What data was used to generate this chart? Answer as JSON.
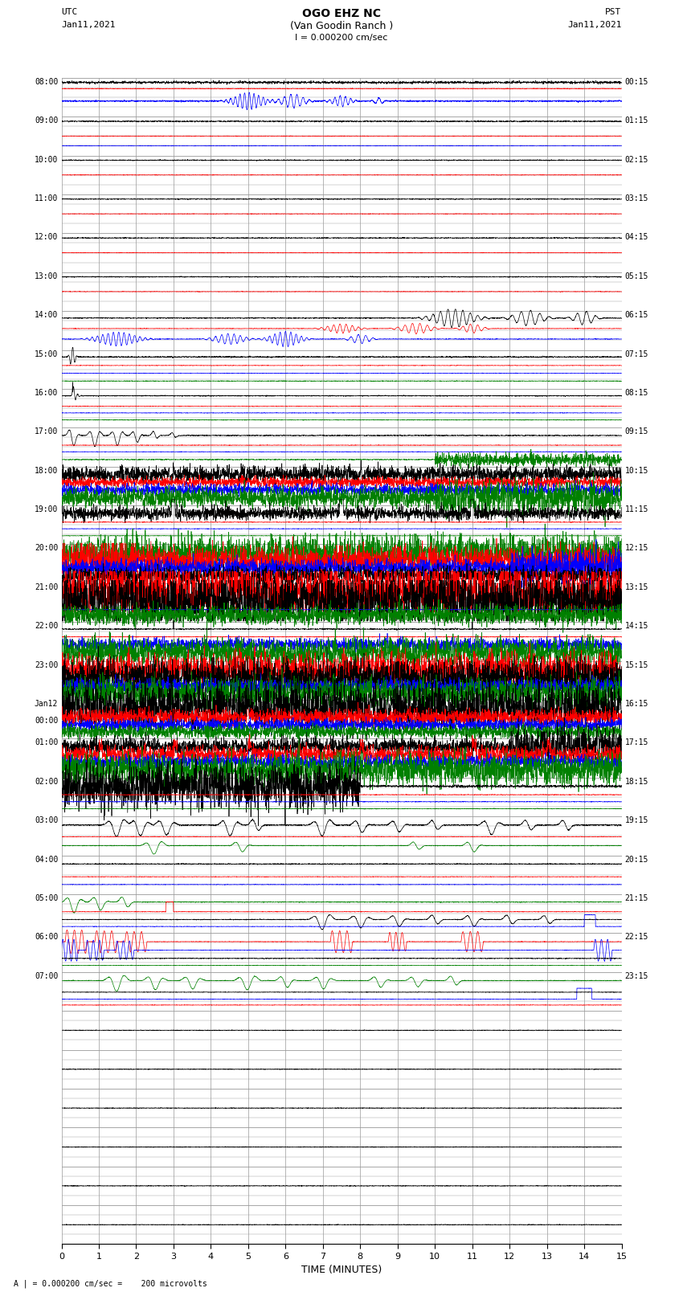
{
  "title_line1": "OGO EHZ NC",
  "title_line2": "(Van Goodin Ranch )",
  "title_line3": "I = 0.000200 cm/sec",
  "left_top_label1": "UTC",
  "left_top_label2": "Jan11,2021",
  "right_top_label1": "PST",
  "right_top_label2": "Jan11,2021",
  "bottom_label": "TIME (MINUTES)",
  "bottom_note": "A | = 0.000200 cm/sec =    200 microvolts",
  "xlim": [
    0,
    15
  ],
  "xticks": [
    0,
    1,
    2,
    3,
    4,
    5,
    6,
    7,
    8,
    9,
    10,
    11,
    12,
    13,
    14,
    15
  ],
  "figsize": [
    8.5,
    16.13
  ],
  "dpi": 100,
  "background_color": "#ffffff",
  "grid_color": "#999999",
  "num_rows": 30,
  "row_labels_left": [
    "08:00",
    "09:00",
    "10:00",
    "11:00",
    "12:00",
    "13:00",
    "14:00",
    "15:00",
    "16:00",
    "17:00",
    "18:00",
    "19:00",
    "20:00",
    "21:00",
    "22:00",
    "23:00",
    "Jan12\n00:00",
    "01:00",
    "02:00",
    "03:00",
    "04:00",
    "05:00",
    "06:00",
    "07:00",
    "",
    "",
    "",
    "",
    "",
    ""
  ],
  "row_labels_right": [
    "00:15",
    "01:15",
    "02:15",
    "03:15",
    "04:15",
    "05:15",
    "06:15",
    "07:15",
    "08:15",
    "09:15",
    "10:15",
    "11:15",
    "12:15",
    "13:15",
    "14:15",
    "15:15",
    "16:15",
    "17:15",
    "18:15",
    "19:15",
    "20:15",
    "21:15",
    "22:15",
    "23:15",
    "",
    "",
    "",
    "",
    "",
    ""
  ]
}
